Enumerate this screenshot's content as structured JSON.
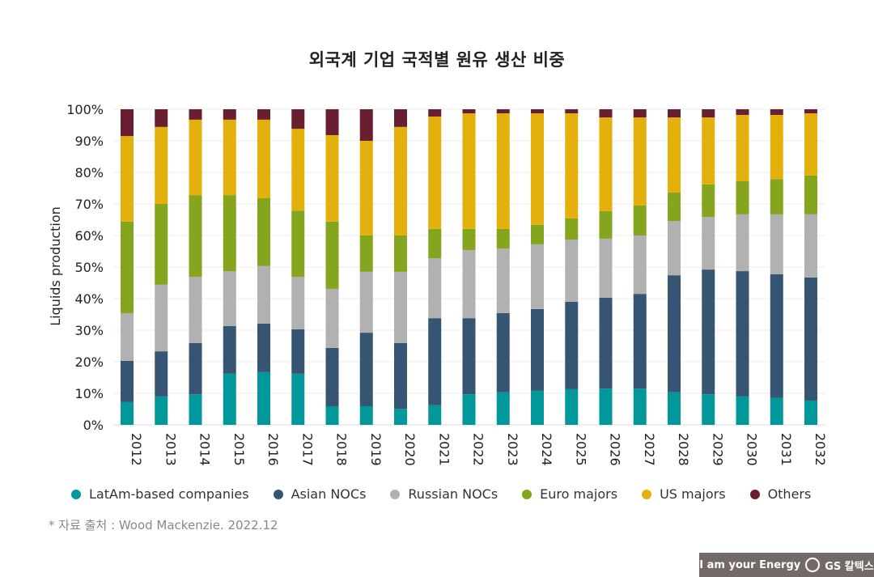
{
  "title": "외국계 기업 국적별 원유 생산 비중",
  "source": "* 자료 출처 : Wood Mackenzie. 2022.12",
  "brand": {
    "slogan": "I am your Energy",
    "name": "GS 칼텍스"
  },
  "chart_data": {
    "type": "bar",
    "stacked": true,
    "title": "외국계 기업 국적별 원유 생산 비중",
    "xlabel": "",
    "ylabel": "Liquids production",
    "ylim": [
      0,
      100
    ],
    "yticks": [
      "0%",
      "10%",
      "20%",
      "30%",
      "40%",
      "50%",
      "60%",
      "70%",
      "80%",
      "90%",
      "100%"
    ],
    "grid": true,
    "legend_position": "bottom",
    "categories": [
      "2012",
      "2013",
      "2014",
      "2015",
      "2016",
      "2017",
      "2018",
      "2019",
      "2020",
      "2021",
      "2022",
      "2023",
      "2024",
      "2025",
      "2026",
      "2027",
      "2028",
      "2029",
      "2030",
      "2031",
      "2032"
    ],
    "series": [
      {
        "name": "LatAm-based companies",
        "color": "#00989a",
        "values": [
          7.2,
          9.0,
          9.7,
          16.2,
          16.7,
          16.2,
          5.9,
          5.9,
          5.1,
          6.2,
          9.7,
          10.3,
          10.8,
          11.3,
          11.5,
          11.5,
          10.3,
          9.7,
          9.0,
          8.5,
          7.7
        ]
      },
      {
        "name": "Asian NOCs",
        "color": "#365572",
        "values": [
          13.1,
          14.3,
          16.2,
          15.1,
          15.4,
          14.1,
          18.5,
          23.3,
          20.8,
          27.6,
          24.1,
          25.1,
          25.9,
          27.7,
          28.8,
          30.0,
          37.1,
          39.5,
          39.7,
          39.2,
          39.0
        ]
      },
      {
        "name": "Russian NOCs",
        "color": "#b1b1b1",
        "values": [
          15.1,
          21.1,
          21.0,
          17.4,
          18.2,
          16.6,
          18.7,
          19.3,
          22.6,
          19.0,
          21.6,
          20.5,
          20.5,
          19.7,
          18.7,
          18.5,
          17.2,
          16.7,
          18.0,
          19.0,
          20.0
        ]
      },
      {
        "name": "Euro majors",
        "color": "#84a51d",
        "values": [
          29.0,
          25.6,
          25.9,
          24.1,
          21.5,
          21.0,
          21.3,
          11.5,
          11.5,
          9.3,
          6.7,
          6.2,
          6.2,
          6.7,
          8.7,
          9.5,
          9.0,
          10.3,
          10.5,
          11.2,
          12.3
        ]
      },
      {
        "name": "US majors",
        "color": "#e4b10c",
        "values": [
          27.1,
          24.4,
          23.9,
          23.9,
          24.9,
          25.9,
          27.4,
          30.0,
          34.4,
          35.6,
          36.6,
          36.6,
          35.3,
          33.3,
          29.7,
          27.9,
          23.8,
          21.2,
          21.0,
          20.3,
          19.7
        ]
      },
      {
        "name": "Others",
        "color": "#6a1f30",
        "values": [
          8.5,
          5.6,
          3.3,
          3.3,
          3.3,
          6.2,
          8.2,
          10.0,
          5.6,
          2.3,
          1.3,
          1.3,
          1.3,
          1.3,
          2.6,
          2.6,
          2.6,
          2.6,
          1.8,
          1.8,
          1.3
        ]
      }
    ]
  }
}
